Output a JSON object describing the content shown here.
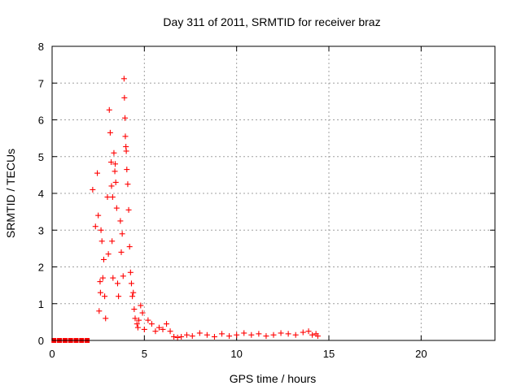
{
  "chart_data": {
    "type": "scatter",
    "title": "Day 311 of 2011, SRMTID for receiver braz",
    "xlabel": "GPS time / hours",
    "ylabel": "SRMTID / TECUs",
    "xlim": [
      0,
      24
    ],
    "ylim": [
      0,
      8
    ],
    "xticks": [
      0,
      5,
      10,
      15,
      20
    ],
    "yticks": [
      0,
      1,
      2,
      3,
      4,
      5,
      6,
      7,
      8
    ],
    "xtick_labels": [
      "0",
      "5",
      "10",
      "15",
      "20"
    ],
    "ytick_labels": [
      "0",
      "1",
      "2",
      "3",
      "4",
      "5",
      "6",
      "7",
      "8"
    ],
    "grid": true,
    "marker": "plus",
    "series": [
      {
        "name": "SRMTID",
        "color": "#ff0000",
        "x": [
          0.1,
          0.4,
          0.7,
          1.0,
          1.3,
          1.6,
          1.9,
          2.2,
          2.35,
          2.45,
          2.5,
          2.55,
          2.6,
          2.62,
          2.65,
          2.7,
          2.75,
          2.8,
          2.85,
          2.9,
          3.0,
          3.05,
          3.1,
          3.15,
          3.2,
          3.22,
          3.25,
          3.28,
          3.3,
          3.35,
          3.4,
          3.42,
          3.45,
          3.5,
          3.55,
          3.6,
          3.7,
          3.75,
          3.8,
          3.85,
          3.9,
          3.92,
          3.95,
          3.97,
          4.0,
          4.02,
          4.05,
          4.1,
          4.15,
          4.2,
          4.25,
          4.3,
          4.35,
          4.4,
          4.45,
          4.5,
          4.6,
          4.65,
          4.7,
          4.8,
          4.9,
          5.0,
          5.2,
          5.4,
          5.6,
          5.8,
          6.0,
          6.2,
          6.4,
          6.6,
          6.8,
          7.0,
          7.3,
          7.6,
          8.0,
          8.4,
          8.8,
          9.2,
          9.6,
          10.0,
          10.4,
          10.8,
          11.2,
          11.6,
          12.0,
          12.4,
          12.8,
          13.2,
          13.6,
          13.9,
          14.1,
          14.3,
          14.4
        ],
        "y": [
          0,
          0,
          0,
          0,
          0,
          0,
          0,
          4.1,
          3.1,
          4.55,
          3.4,
          0.8,
          1.6,
          1.3,
          3.0,
          2.7,
          1.7,
          2.2,
          1.2,
          0.6,
          3.9,
          2.35,
          6.27,
          5.65,
          4.85,
          4.2,
          2.7,
          3.9,
          1.7,
          5.1,
          4.6,
          4.8,
          4.3,
          3.6,
          1.55,
          1.2,
          3.25,
          2.4,
          2.9,
          1.75,
          7.12,
          6.6,
          6.05,
          5.55,
          5.27,
          5.15,
          4.65,
          4.25,
          3.55,
          2.55,
          1.85,
          1.55,
          1.2,
          1.3,
          0.85,
          0.6,
          0.45,
          0.35,
          0.55,
          0.95,
          0.75,
          0.3,
          0.55,
          0.45,
          0.25,
          0.35,
          0.3,
          0.45,
          0.25,
          0.1,
          0.08,
          0.1,
          0.15,
          0.12,
          0.2,
          0.15,
          0.1,
          0.18,
          0.12,
          0.15,
          0.2,
          0.15,
          0.18,
          0.12,
          0.15,
          0.2,
          0.18,
          0.15,
          0.22,
          0.25,
          0.15,
          0.18,
          0.12
        ]
      }
    ]
  }
}
